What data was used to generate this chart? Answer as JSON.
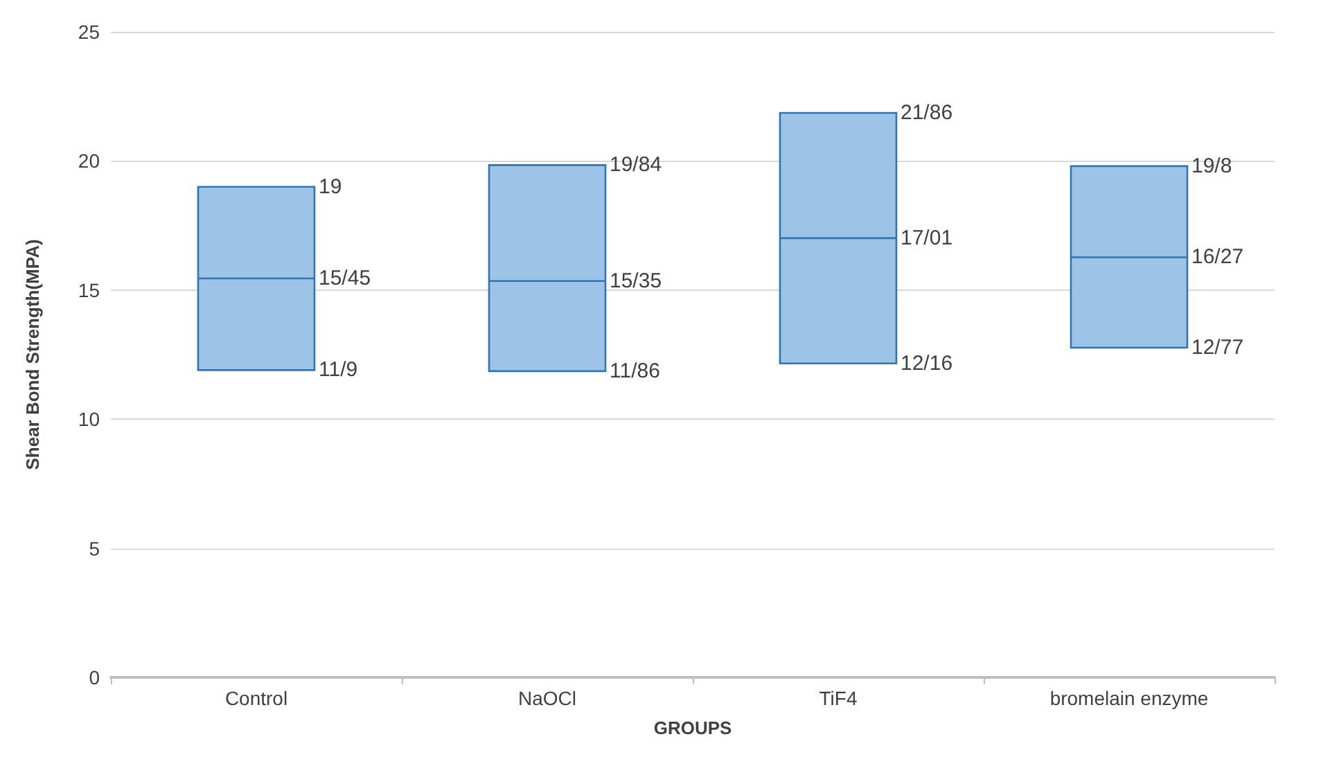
{
  "chart_data": {
    "type": "box",
    "xlabel": "GROUPS",
    "ylabel": "Shear Bond Strength(MPA)",
    "categories": [
      "Control",
      "NaOCl",
      "TiF4",
      "bromelain enzyme"
    ],
    "boxes": [
      {
        "low": 11.9,
        "q1": 11.9,
        "median": 15.45,
        "q3": 19,
        "high": 19
      },
      {
        "low": 11.86,
        "q1": 11.86,
        "median": 15.35,
        "q3": 19.84,
        "high": 19.84
      },
      {
        "low": 12.16,
        "q1": 12.16,
        "median": 17.01,
        "q3": 21.86,
        "high": 21.86
      },
      {
        "low": 12.77,
        "q1": 12.77,
        "median": 16.27,
        "q3": 19.8,
        "high": 19.8
      }
    ],
    "color": "#9dc3e6",
    "ylim": [
      0,
      25
    ],
    "yticks": [
      0,
      5,
      10,
      15,
      20,
      25
    ],
    "grid": "y",
    "annotations": [
      {
        "text": "19",
        "x": "Control",
        "y": 19
      },
      {
        "text": "15/45",
        "x": "Control",
        "y": 15.45
      },
      {
        "text": "11/9",
        "x": "Control",
        "y": 11.9
      },
      {
        "text": "19/84",
        "x": "NaOCl",
        "y": 19.84
      },
      {
        "text": "15/35",
        "x": "NaOCl",
        "y": 15.35
      },
      {
        "text": "11/86",
        "x": "NaOCl",
        "y": 11.86
      },
      {
        "text": "21/86",
        "x": "TiF4",
        "y": 21.86
      },
      {
        "text": "17/01",
        "x": "TiF4",
        "y": 17.01
      },
      {
        "text": "12/16",
        "x": "TiF4",
        "y": 12.16
      },
      {
        "text": "19/8",
        "x": "bromelain enzyme",
        "y": 19.8
      },
      {
        "text": "16/27",
        "x": "bromelain enzyme",
        "y": 16.27
      },
      {
        "text": "12/77",
        "x": "bromelain enzyme",
        "y": 12.77
      }
    ]
  }
}
